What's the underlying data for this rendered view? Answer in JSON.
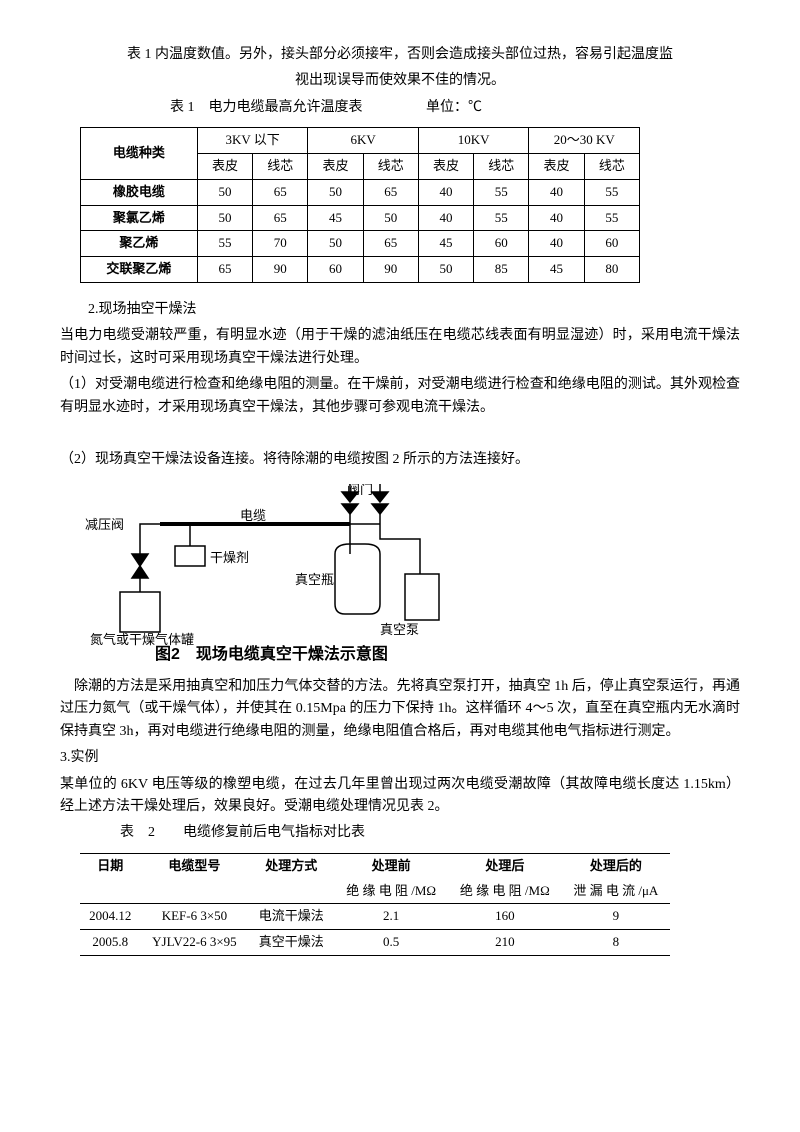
{
  "intro": {
    "line1": "表 1 内温度数值。另外，接头部分必须接牢，否则会造成接头部位过热，容易引起温度监",
    "line2": "视出现误导而使效果不佳的情况。",
    "table1_caption": "表 1　电力电缆最高允许温度表",
    "table1_unit": "单位：℃"
  },
  "table1": {
    "col_group_labels": [
      "电缆种类",
      "3KV 以下",
      "6KV",
      "10KV",
      "20～30 KV"
    ],
    "sub_labels": [
      "表皮",
      "线芯"
    ],
    "rows": [
      {
        "name": "橡胶电缆",
        "v": [
          "50",
          "65",
          "50",
          "65",
          "40",
          "55",
          "40",
          "55"
        ]
      },
      {
        "name": "聚氯乙烯",
        "v": [
          "50",
          "65",
          "45",
          "50",
          "40",
          "55",
          "40",
          "55"
        ]
      },
      {
        "name": "聚乙烯",
        "v": [
          "55",
          "70",
          "50",
          "65",
          "45",
          "60",
          "40",
          "60"
        ]
      },
      {
        "name": "交联聚乙烯",
        "v": [
          "65",
          "90",
          "60",
          "90",
          "50",
          "85",
          "45",
          "80"
        ]
      }
    ]
  },
  "section2": {
    "h": "2.现场抽空干燥法",
    "p1": "当电力电缆受潮较严重，有明显水迹（用于干燥的滤油纸压在电缆芯线表面有明显湿迹）时，采用电流干燥法时间过长，这时可采用现场真空干燥法进行处理。",
    "p2": "（1）对受潮电缆进行检查和绝缘电阻的测量。在干燥前，对受潮电缆进行检查和绝缘电阻的测试。其外观检查有明显水迹时，才采用现场真空干燥法，其他步骤可参观电流干燥法。",
    "p3": "（2）现场真空干燥法设备连接。将待除潮的电缆按图 2 所示的方法连接好。"
  },
  "diagram": {
    "labels": {
      "valve": "阀门",
      "reducer": "减压阀",
      "cable": "电缆",
      "dryer": "干燥剂",
      "gas": "氮气或干燥气体罐",
      "bottle": "真空瓶",
      "pump": "真空泵"
    },
    "caption": "图2　现场电缆真空干燥法示意图",
    "colors": {
      "stroke": "#000000",
      "bg": "#ffffff"
    }
  },
  "section2b": {
    "p4": "　除潮的方法是采用抽真空和加压力气体交替的方法。先将真空泵打开，抽真空 1h 后，停止真空泵运行，再通过压力氮气（或干燥气体），并使其在 0.15Mpa 的压力下保持 1h。这样循环 4～5 次，直至在真空瓶内无水滴时保持真空 3h，再对电缆进行绝缘电阻的测量，绝缘电阻值合格后，再对电缆其他电气指标进行测定。"
  },
  "section3": {
    "h": "3.实例",
    "p1": "某单位的 6KV 电压等级的橡塑电缆，在过去几年里曾出现过两次电缆受潮故障（其故障电缆长度达 1.15km）经上述方法干燥处理后，效果良好。受潮电缆处理情况见表 2。",
    "table2_caption": "表　2　　电缆修复前后电气指标对比表"
  },
  "table2": {
    "columns": [
      "日期",
      "电缆型号",
      "处理方式",
      "处理前",
      "处理后",
      "处理后的"
    ],
    "sub": [
      "",
      "",
      "",
      "绝 缘 电 阻 /MΩ",
      "绝 缘 电 阻 /MΩ",
      "泄 漏 电 流 /μA"
    ],
    "rows": [
      {
        "c": [
          "2004.12",
          "KEF-6 3×50",
          "电流干燥法",
          "2.1",
          "160",
          "9"
        ]
      },
      {
        "c": [
          "2005.8",
          "YJLV22-6 3×95",
          "真空干燥法",
          "0.5",
          "210",
          "8"
        ]
      }
    ]
  }
}
